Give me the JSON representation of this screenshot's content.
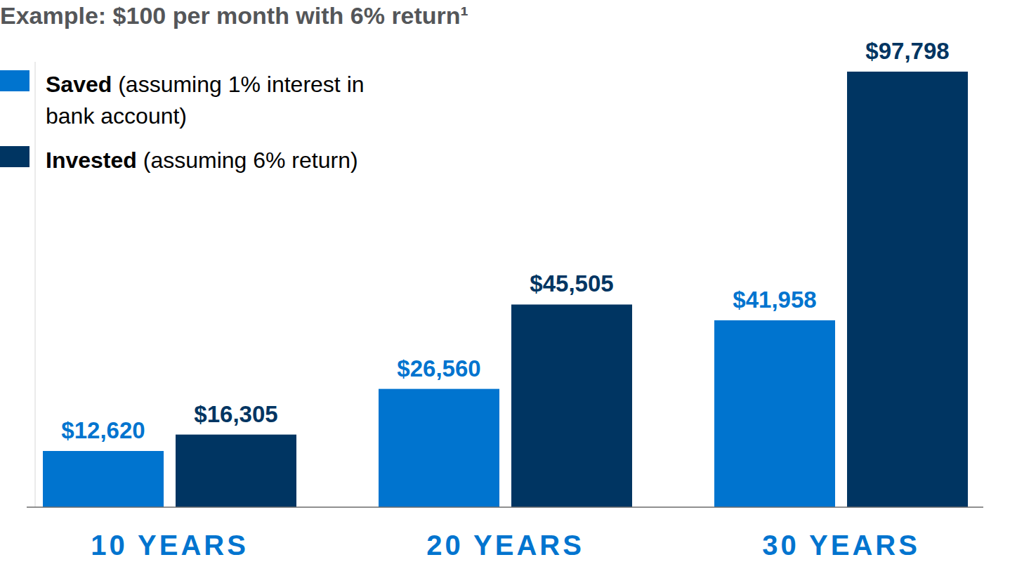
{
  "chart_data": {
    "type": "bar",
    "title": "Example: $100 per month with 6% return¹",
    "categories": [
      "10 YEARS",
      "20 YEARS",
      "30 YEARS"
    ],
    "series": [
      {
        "name": "Saved (assuming 1% interest in bank account)",
        "color": "#0074cf",
        "values": [
          12620,
          26560,
          41958
        ],
        "value_labels": [
          "$12,620",
          "$26,560",
          "$41,958"
        ]
      },
      {
        "name": "Invested (assuming 6% return)",
        "color": "#003562",
        "values": [
          16305,
          45505,
          97798
        ],
        "value_labels": [
          "$16,305",
          "$45,505",
          "$97,798"
        ]
      }
    ],
    "ylim": [
      0,
      100000
    ],
    "data_labels": true,
    "tick_labels": "x",
    "legend": "top-left",
    "grid": false
  }
}
